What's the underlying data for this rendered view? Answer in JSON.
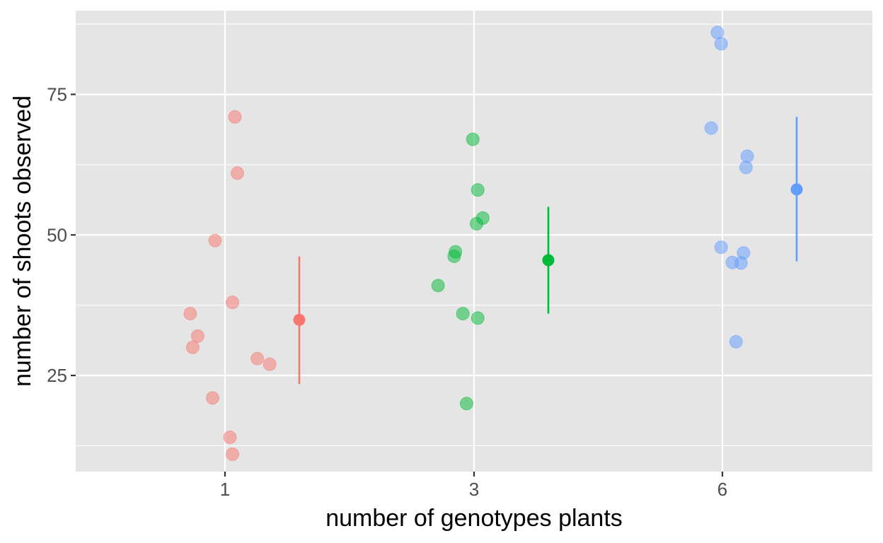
{
  "chart_data": {
    "type": "scatter",
    "title": "",
    "xlabel": "number of genotypes plants",
    "ylabel": "number of shoots observed",
    "x_categories": [
      "1",
      "3",
      "6"
    ],
    "y_ticks": [
      25,
      50,
      75
    ],
    "ylim": [
      7.9,
      89.9
    ],
    "grid": true,
    "legend": "none",
    "panel_color": "#e5e5e5",
    "grid_color": "#ffffff",
    "series": [
      {
        "name": "1",
        "color": "#f8766d",
        "points": [
          {
            "jitter": 0.04,
            "y": 71
          },
          {
            "jitter": 0.05,
            "y": 61
          },
          {
            "jitter": -0.04,
            "y": 49
          },
          {
            "jitter": 0.03,
            "y": 38
          },
          {
            "jitter": -0.14,
            "y": 36
          },
          {
            "jitter": -0.11,
            "y": 32
          },
          {
            "jitter": -0.13,
            "y": 30
          },
          {
            "jitter": 0.13,
            "y": 28
          },
          {
            "jitter": 0.18,
            "y": 27
          },
          {
            "jitter": -0.05,
            "y": 21
          },
          {
            "jitter": 0.02,
            "y": 14
          },
          {
            "jitter": 0.03,
            "y": 11
          }
        ],
        "mean": 34.9,
        "error_low": 23.5,
        "error_high": 46.2
      },
      {
        "name": "3",
        "color": "#00ba38",
        "points": [
          {
            "jitter": -0.005,
            "y": 67
          },
          {
            "jitter": 0.015,
            "y": 58
          },
          {
            "jitter": 0.035,
            "y": 53
          },
          {
            "jitter": 0.01,
            "y": 52
          },
          {
            "jitter": -0.075,
            "y": 47
          },
          {
            "jitter": -0.08,
            "y": 46.2
          },
          {
            "jitter": -0.145,
            "y": 41
          },
          {
            "jitter": -0.045,
            "y": 36
          },
          {
            "jitter": 0.015,
            "y": 35.2
          },
          {
            "jitter": -0.03,
            "y": 20
          }
        ],
        "mean": 45.5,
        "error_low": 36,
        "error_high": 55
      },
      {
        "name": "6",
        "color": "#619cff",
        "points": [
          {
            "jitter": -0.02,
            "y": 86
          },
          {
            "jitter": -0.005,
            "y": 84
          },
          {
            "jitter": -0.045,
            "y": 69
          },
          {
            "jitter": 0.1,
            "y": 64
          },
          {
            "jitter": 0.095,
            "y": 62
          },
          {
            "jitter": -0.005,
            "y": 47.8
          },
          {
            "jitter": 0.085,
            "y": 46.8
          },
          {
            "jitter": 0.04,
            "y": 45.1
          },
          {
            "jitter": 0.075,
            "y": 45
          },
          {
            "jitter": 0.055,
            "y": 31
          }
        ],
        "mean": 58.1,
        "error_low": 45.3,
        "error_high": 71
      }
    ]
  }
}
